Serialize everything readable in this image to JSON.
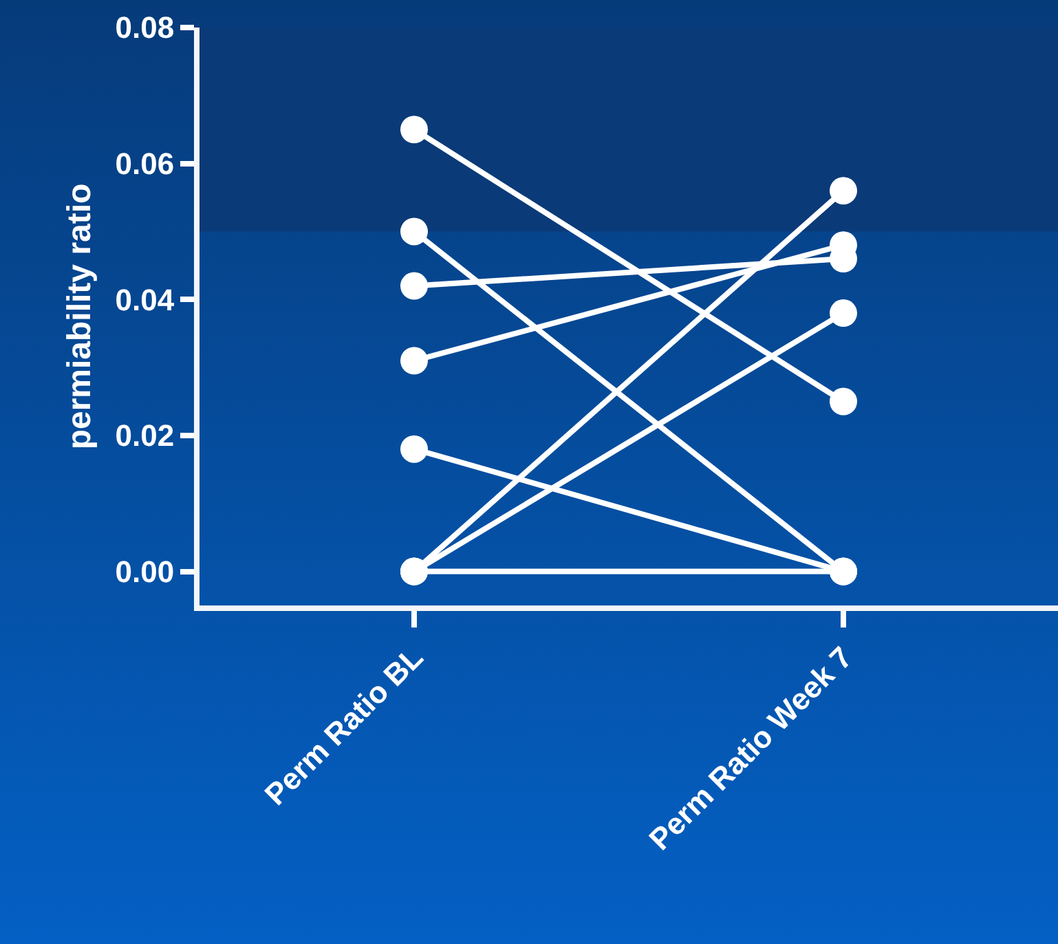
{
  "chart_data": {
    "type": "line",
    "ylabel": "permiability ratio",
    "categories": [
      "Perm Ratio BL",
      "Perm Ratio Week 7"
    ],
    "series": [
      {
        "color": "#ffffff",
        "values": [
          0,
          0
        ]
      },
      {
        "color": "#ffffff",
        "values": [
          0.065,
          0.025
        ]
      },
      {
        "color": "#ffffff",
        "values": [
          0.05,
          0
        ]
      },
      {
        "color": "#ffffff",
        "values": [
          0.042,
          0.046
        ]
      },
      {
        "color": "#ffffff",
        "values": [
          0.031,
          0.048
        ]
      },
      {
        "color": "#ffffff",
        "values": [
          0.018,
          0
        ]
      },
      {
        "color": "#ffffff",
        "values": [
          0,
          0.056
        ]
      },
      {
        "color": "#ffffff",
        "values": [
          0,
          0.038
        ]
      }
    ],
    "ylim": [
      -0.005,
      0.08
    ],
    "yticks": [
      {
        "value": 0,
        "label": "0.00"
      },
      {
        "value": 0.02,
        "label": "0.02"
      },
      {
        "value": 0.04,
        "label": "0.04"
      },
      {
        "value": 0.06,
        "label": "0.06"
      },
      {
        "value": 0.08,
        "label": "0.08"
      }
    ],
    "bands": [
      {
        "axis": "y",
        "from": 0.05,
        "to": 0.08,
        "color": "#0a3a78"
      }
    ],
    "marker": "circle",
    "line_style": "solid",
    "grid": false
  }
}
